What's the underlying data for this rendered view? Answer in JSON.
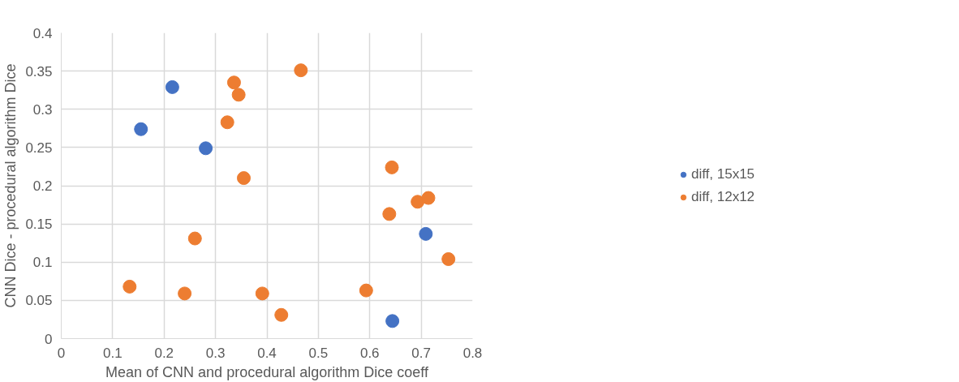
{
  "chart_data": {
    "type": "scatter",
    "xlabel": "Mean of CNN and procedural algorithm Dice coeff",
    "ylabel": "CNN Dice - procedural algorithm Dice",
    "xlim": [
      0,
      0.8
    ],
    "xticks": [
      0,
      0.1,
      0.2,
      0.3,
      0.4,
      0.5,
      0.6,
      0.7,
      0.8
    ],
    "ylim": [
      0,
      0.4
    ],
    "yticks": [
      0,
      0.05,
      0.1,
      0.15,
      0.2,
      0.25,
      0.3,
      0.35,
      0.4
    ],
    "grid": true,
    "legend": "right",
    "marker": "circle",
    "series": [
      {
        "name": "diff, 15x15",
        "color": "#4472c4",
        "x": [
          0.155,
          0.216,
          0.281,
          0.709,
          0.644
        ],
        "values": [
          0.274,
          0.329,
          0.249,
          0.137,
          0.023
        ]
      },
      {
        "name": "diff, 12x12",
        "color": "#ed7d31",
        "x": [
          0.133,
          0.24,
          0.26,
          0.323,
          0.336,
          0.345,
          0.355,
          0.391,
          0.428,
          0.466,
          0.643,
          0.693,
          0.714,
          0.638,
          0.753,
          0.593
        ],
        "values": [
          0.068,
          0.059,
          0.131,
          0.283,
          0.335,
          0.319,
          0.21,
          0.059,
          0.031,
          0.351,
          0.224,
          0.179,
          0.184,
          0.163,
          0.104,
          0.063
        ]
      }
    ]
  }
}
